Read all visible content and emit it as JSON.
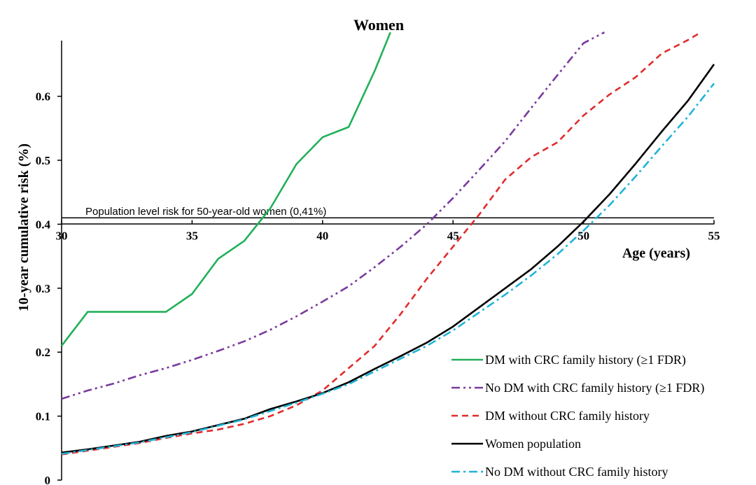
{
  "chart_data": {
    "type": "line",
    "title": "Women",
    "xlabel": "Age (years)",
    "ylabel": "10-year cumulative risk (%)",
    "xlim": [
      30,
      55
    ],
    "ylim": [
      0,
      0.7
    ],
    "x_ticks": [
      "30",
      "35",
      "40",
      "45",
      "50",
      "55"
    ],
    "y_ticks": [
      "0",
      "0.1",
      "0.2",
      "0.3",
      "0.4",
      "0.5",
      "0.6"
    ],
    "x_axis_crosses_y": 0.4,
    "reference_line": {
      "y": 0.41,
      "label": "Population level risk for 50-year-old women (0,41%)"
    },
    "legend_position": "bottom-right",
    "series": [
      {
        "name": "DM with CRC family history (≥1 FDR)",
        "color": "#22b05a",
        "style": "solid",
        "x": [
          30,
          31,
          32,
          33,
          34,
          35,
          36,
          37,
          38,
          39,
          40,
          41,
          42,
          42.6
        ],
        "y": [
          0.21,
          0.263,
          0.263,
          0.263,
          0.263,
          0.291,
          0.346,
          0.374,
          0.425,
          0.494,
          0.536,
          0.552,
          0.64,
          0.7
        ]
      },
      {
        "name": "No DM with CRC family history (≥1 FDR)",
        "color": "#7a3a9c",
        "style": "dash-dot-dot",
        "x": [
          30,
          31,
          32,
          33,
          34,
          35,
          36,
          37,
          38,
          39,
          40,
          41,
          42,
          43,
          44,
          45,
          46,
          47,
          48,
          49,
          50,
          50.8
        ],
        "y": [
          0.127,
          0.14,
          0.151,
          0.164,
          0.175,
          0.188,
          0.202,
          0.217,
          0.235,
          0.256,
          0.279,
          0.303,
          0.333,
          0.365,
          0.4,
          0.441,
          0.485,
          0.53,
          0.582,
          0.633,
          0.683,
          0.7
        ]
      },
      {
        "name": "DM without CRC family history",
        "color": "#e02c2c",
        "style": "dashed",
        "x": [
          30,
          31,
          32,
          33,
          34,
          35,
          36,
          37,
          38,
          39,
          40,
          41,
          42,
          43,
          44,
          45,
          46,
          47,
          48,
          49,
          50,
          51,
          52,
          53,
          54,
          54.5
        ],
        "y": [
          0.04,
          0.046,
          0.052,
          0.058,
          0.066,
          0.073,
          0.079,
          0.088,
          0.1,
          0.117,
          0.14,
          0.175,
          0.21,
          0.26,
          0.315,
          0.365,
          0.415,
          0.47,
          0.505,
          0.528,
          0.57,
          0.603,
          0.63,
          0.667,
          0.688,
          0.7
        ]
      },
      {
        "name": "Women population",
        "color": "#000000",
        "style": "solid",
        "x": [
          30,
          31,
          32,
          33,
          34,
          35,
          36,
          37,
          38,
          39,
          40,
          41,
          42,
          43,
          44,
          45,
          46,
          47,
          48,
          49,
          50,
          51,
          52,
          53,
          54,
          55
        ],
        "y": [
          0.043,
          0.048,
          0.054,
          0.06,
          0.069,
          0.076,
          0.086,
          0.096,
          0.111,
          0.123,
          0.136,
          0.153,
          0.174,
          0.194,
          0.215,
          0.24,
          0.27,
          0.3,
          0.33,
          0.365,
          0.404,
          0.447,
          0.495,
          0.545,
          0.593,
          0.65
        ]
      },
      {
        "name": "No DM without CRC family history",
        "color": "#1fb4d8",
        "style": "dash-dot",
        "x": [
          30,
          31,
          32,
          33,
          34,
          35,
          36,
          37,
          38,
          39,
          40,
          41,
          42,
          43,
          44,
          45,
          46,
          47,
          48,
          49,
          50,
          51,
          52,
          53,
          54,
          55
        ],
        "y": [
          0.041,
          0.047,
          0.053,
          0.059,
          0.067,
          0.075,
          0.085,
          0.095,
          0.108,
          0.121,
          0.135,
          0.15,
          0.17,
          0.19,
          0.21,
          0.234,
          0.262,
          0.29,
          0.32,
          0.353,
          0.39,
          0.43,
          0.475,
          0.522,
          0.568,
          0.62
        ]
      }
    ]
  }
}
